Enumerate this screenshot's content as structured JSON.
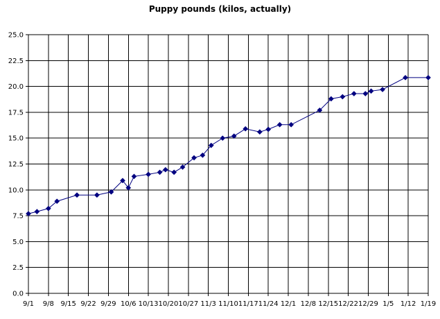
{
  "chart_data": {
    "type": "line",
    "title": "Puppy pounds (kilos, actually)",
    "xlabel": "",
    "ylabel": "",
    "ylim": [
      0,
      25
    ],
    "y_ticks": [
      "0.0",
      "2.5",
      "5.0",
      "7.5",
      "10.0",
      "12.5",
      "15.0",
      "17.5",
      "20.0",
      "22.5",
      "25.0"
    ],
    "x_tick_labels": [
      "9/1",
      "9/8",
      "9/15",
      "9/22",
      "9/29",
      "10/6",
      "10/13",
      "10/20",
      "10/27",
      "11/3",
      "11/10",
      "11/17",
      "11/24",
      "12/1",
      "12/8",
      "12/15",
      "12/22",
      "12/29",
      "1/5",
      "1/12",
      "1/19"
    ],
    "grid": true,
    "line_color": "#000080",
    "marker": "diamond",
    "series": [
      {
        "points": [
          {
            "x": "9/1",
            "y": 7.7
          },
          {
            "x": "9/4",
            "y": 7.9
          },
          {
            "x": "9/8",
            "y": 8.2
          },
          {
            "x": "9/11",
            "y": 8.9
          },
          {
            "x": "9/18",
            "y": 9.5
          },
          {
            "x": "9/25",
            "y": 9.5
          },
          {
            "x": "9/30",
            "y": 9.8
          },
          {
            "x": "10/4",
            "y": 10.9
          },
          {
            "x": "10/6",
            "y": 10.2
          },
          {
            "x": "10/8",
            "y": 11.3
          },
          {
            "x": "10/13",
            "y": 11.5
          },
          {
            "x": "10/17",
            "y": 11.7
          },
          {
            "x": "10/19",
            "y": 11.95
          },
          {
            "x": "10/22",
            "y": 11.7
          },
          {
            "x": "10/25",
            "y": 12.2
          },
          {
            "x": "10/29",
            "y": 13.1
          },
          {
            "x": "11/1",
            "y": 13.35
          },
          {
            "x": "11/4",
            "y": 14.3
          },
          {
            "x": "11/8",
            "y": 15.0
          },
          {
            "x": "11/12",
            "y": 15.2
          },
          {
            "x": "11/16",
            "y": 15.9
          },
          {
            "x": "11/21",
            "y": 15.6
          },
          {
            "x": "11/24",
            "y": 15.85
          },
          {
            "x": "11/28",
            "y": 16.3
          },
          {
            "x": "12/2",
            "y": 16.3
          },
          {
            "x": "12/12",
            "y": 17.7
          },
          {
            "x": "12/16",
            "y": 18.8
          },
          {
            "x": "12/20",
            "y": 19.0
          },
          {
            "x": "12/24",
            "y": 19.3
          },
          {
            "x": "12/28",
            "y": 19.3
          },
          {
            "x": "12/30",
            "y": 19.55
          },
          {
            "x": "1/3",
            "y": 19.7
          },
          {
            "x": "1/11",
            "y": 20.85
          },
          {
            "x": "1/19",
            "y": 20.85
          }
        ]
      }
    ]
  }
}
